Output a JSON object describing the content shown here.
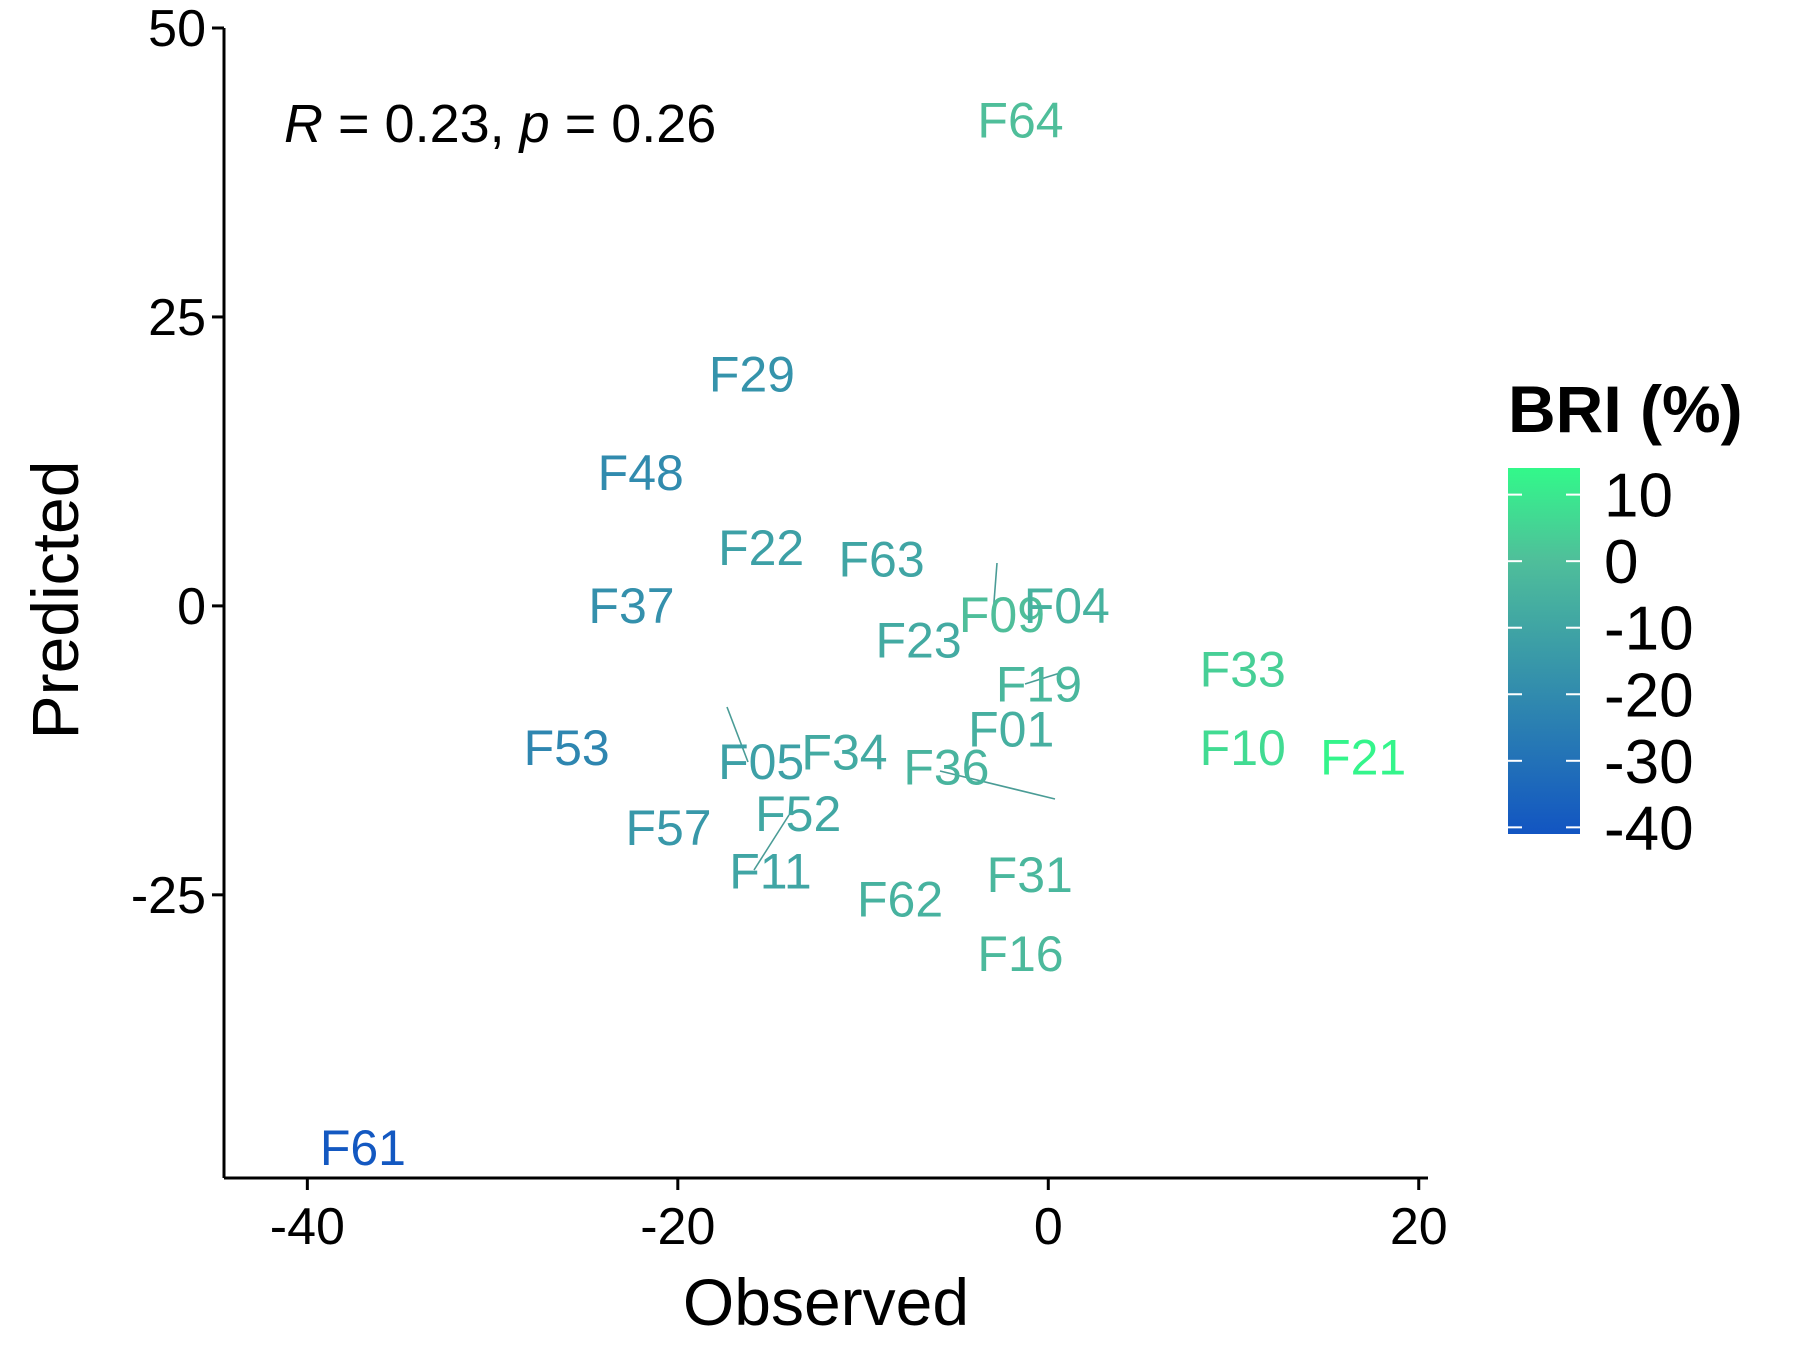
{
  "chart_data": {
    "type": "scatter",
    "xlabel": "Observed",
    "ylabel": "Predicted",
    "xlim": [
      -44.5,
      20.5
    ],
    "ylim": [
      -49.5,
      50
    ],
    "x_ticks": [
      -40,
      -20,
      0,
      20
    ],
    "y_ticks": [
      -25,
      0,
      25,
      50
    ],
    "grid": false,
    "annotation": {
      "R_symbol": "R",
      "R_text": " = 0.23, ",
      "p_symbol": "p",
      "p_text": " = 0.26"
    },
    "legend": {
      "title": "BRI (%)",
      "placement": "right",
      "range": [
        -41,
        14
      ],
      "ticks": [
        10,
        0,
        -10,
        -20,
        -30,
        -40
      ],
      "tick_labels": [
        "10",
        "0",
        "-10",
        "-20",
        "-30",
        "-40"
      ],
      "color_low": "#1255c2",
      "color_mid": "#4fbf9a",
      "color_high": "#32f98a"
    },
    "points": [
      {
        "label": "F64",
        "x": -1.5,
        "y": 42.0,
        "bri": 0
      },
      {
        "label": "F29",
        "x": -16.0,
        "y": 20.0,
        "bri": -17
      },
      {
        "label": "F48",
        "x": -22.0,
        "y": 11.5,
        "bri": -20
      },
      {
        "label": "F22",
        "x": -15.5,
        "y": 5.0,
        "bri": -12
      },
      {
        "label": "F63",
        "x": -9.0,
        "y": 4.0,
        "bri": -10
      },
      {
        "label": "F09",
        "x": -2.5,
        "y": -0.8,
        "bri": 0
      },
      {
        "label": "F37",
        "x": -22.5,
        "y": 0.0,
        "bri": -18
      },
      {
        "label": "F04",
        "x": 1.0,
        "y": 0.0,
        "bri": -5
      },
      {
        "label": "F23",
        "x": -7.0,
        "y": -3.0,
        "bri": -8
      },
      {
        "label": "F05",
        "x": -15.5,
        "y": -13.5,
        "bri": -12
      },
      {
        "label": "F19",
        "x": -0.5,
        "y": -6.8,
        "bri": -3
      },
      {
        "label": "F33",
        "x": 10.5,
        "y": -5.5,
        "bri": 4
      },
      {
        "label": "F01",
        "x": -2.0,
        "y": -10.7,
        "bri": -6
      },
      {
        "label": "F53",
        "x": -26.0,
        "y": -12.3,
        "bri": -22
      },
      {
        "label": "F34",
        "x": -11.0,
        "y": -12.7,
        "bri": -8
      },
      {
        "label": "F10",
        "x": 10.5,
        "y": -12.3,
        "bri": 7
      },
      {
        "label": "F21",
        "x": 17.0,
        "y": -13.1,
        "bri": 13
      },
      {
        "label": "F36",
        "x": -5.5,
        "y": -14.0,
        "bri": -4
      },
      {
        "label": "F57",
        "x": -20.5,
        "y": -19.2,
        "bri": -15
      },
      {
        "label": "F52",
        "x": -13.5,
        "y": -18.0,
        "bri": -9
      },
      {
        "label": "F11",
        "x": -15.0,
        "y": -23.0,
        "bri": -10
      },
      {
        "label": "F62",
        "x": -8.0,
        "y": -25.4,
        "bri": -5
      },
      {
        "label": "F31",
        "x": -1.0,
        "y": -23.3,
        "bri": -3
      },
      {
        "label": "F16",
        "x": -1.5,
        "y": -30.1,
        "bri": -2
      },
      {
        "label": "F61",
        "x": -37.0,
        "y": -46.9,
        "bri": -40
      }
    ]
  }
}
